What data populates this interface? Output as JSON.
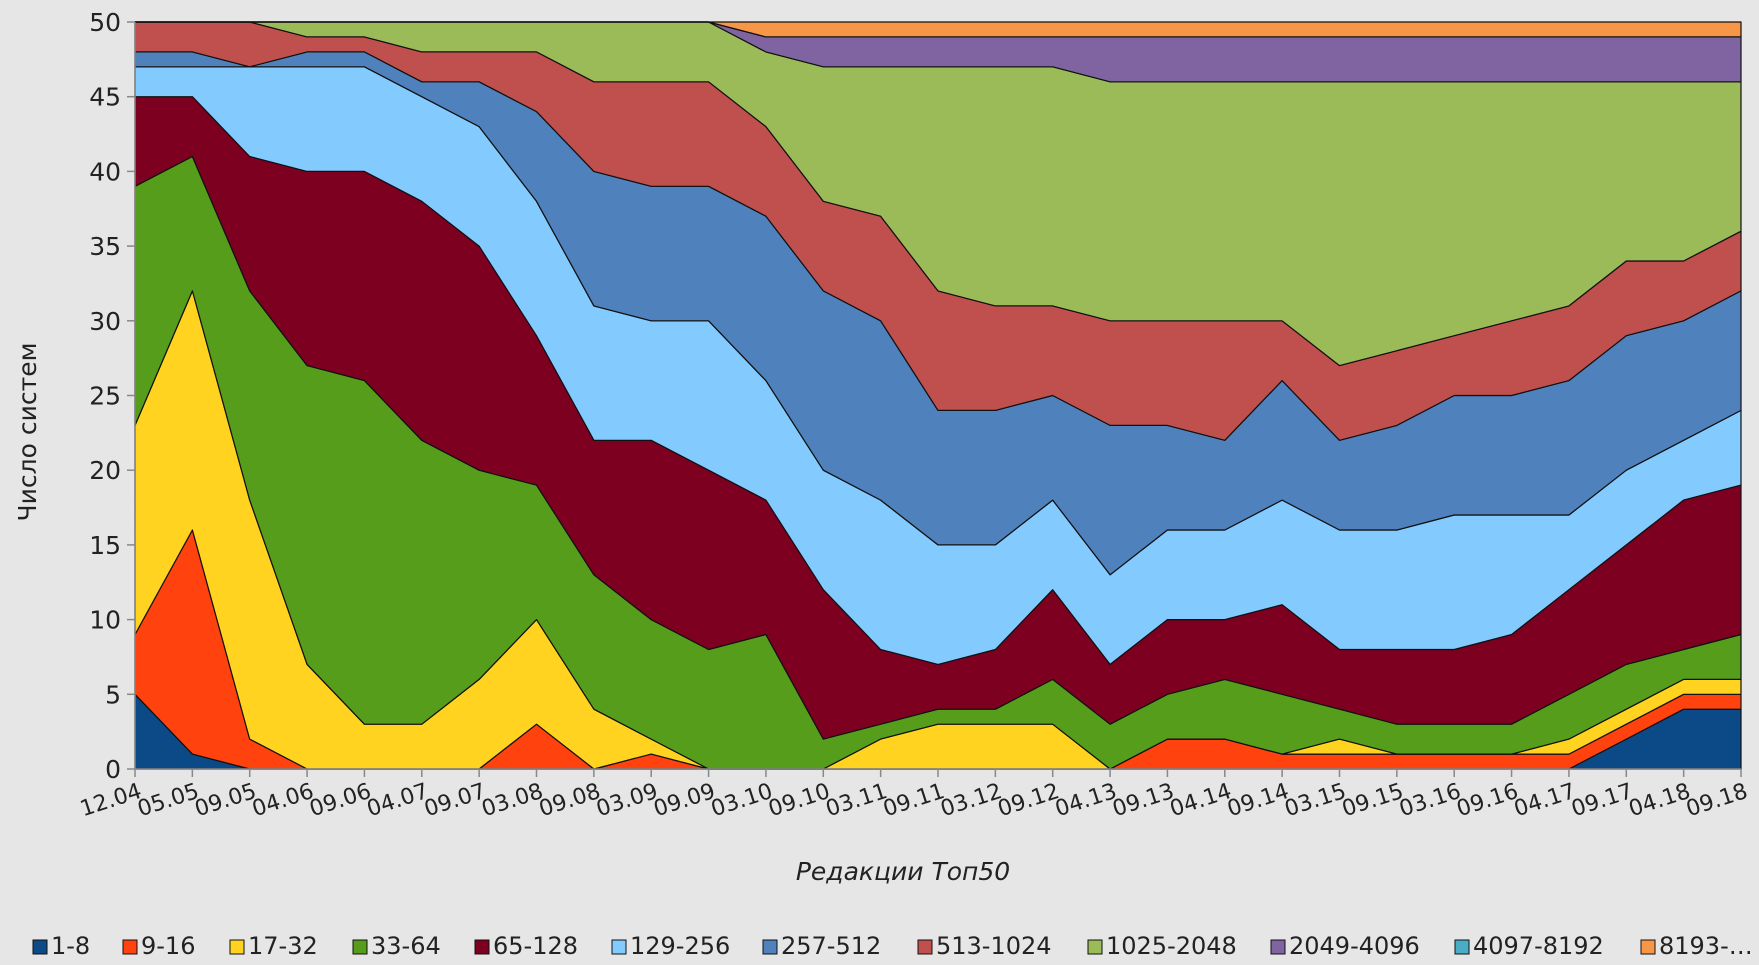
{
  "chart_data": {
    "type": "stacked_area",
    "x_label": "Редакции Топ50",
    "y_label": "Число систем",
    "categories": [
      "12.04",
      "05.05",
      "09.05",
      "04.06",
      "09.06",
      "04.07",
      "09.07",
      "03.08",
      "09.08",
      "03.09",
      "09.09",
      "03.10",
      "09.10",
      "03.11",
      "09.11",
      "03.12",
      "09.12",
      "04.13",
      "09.13",
      "04.14",
      "09.14",
      "03.15",
      "09.15",
      "03.16",
      "09.16",
      "04.17",
      "09.17",
      "04.18",
      "09.18"
    ],
    "ylim": [
      0,
      50
    ],
    "yticks": [
      0,
      5,
      10,
      15,
      20,
      25,
      30,
      35,
      40,
      45,
      50
    ],
    "legend": "bottom",
    "series": [
      {
        "name": "1-8",
        "color": "#0b4a86",
        "values": [
          5,
          1,
          0,
          0,
          0,
          0,
          0,
          0,
          0,
          0,
          0,
          0,
          0,
          0,
          0,
          0,
          0,
          0,
          0,
          0,
          0,
          0,
          0,
          0,
          0,
          0,
          2,
          4,
          4
        ]
      },
      {
        "name": "9-16",
        "color": "#ff420e",
        "values": [
          4,
          15,
          2,
          0,
          0,
          0,
          0,
          3,
          0,
          1,
          0,
          0,
          0,
          0,
          0,
          0,
          0,
          0,
          2,
          2,
          1,
          1,
          1,
          1,
          1,
          1,
          1,
          1,
          1
        ]
      },
      {
        "name": "17-32",
        "color": "#ffd320",
        "values": [
          14,
          16,
          16,
          7,
          3,
          3,
          6,
          7,
          4,
          1,
          0,
          0,
          0,
          2,
          3,
          3,
          3,
          0,
          0,
          0,
          0,
          1,
          0,
          0,
          0,
          1,
          1,
          1,
          1
        ]
      },
      {
        "name": "33-64",
        "color": "#579d1c",
        "values": [
          16,
          9,
          14,
          20,
          23,
          19,
          14,
          9,
          9,
          8,
          8,
          9,
          2,
          1,
          1,
          1,
          3,
          3,
          3,
          4,
          4,
          2,
          2,
          2,
          2,
          3,
          3,
          2,
          3
        ]
      },
      {
        "name": "65-128",
        "color": "#7e0021",
        "values": [
          6,
          4,
          9,
          13,
          14,
          16,
          15,
          10,
          9,
          12,
          12,
          9,
          10,
          5,
          3,
          4,
          6,
          4,
          5,
          4,
          6,
          4,
          5,
          5,
          6,
          7,
          8,
          10,
          10
        ]
      },
      {
        "name": "129-256",
        "color": "#83caff",
        "values": [
          2,
          2,
          6,
          7,
          7,
          7,
          8,
          9,
          9,
          8,
          10,
          8,
          8,
          10,
          8,
          7,
          6,
          6,
          6,
          6,
          7,
          8,
          8,
          9,
          8,
          5,
          5,
          4,
          5
        ]
      },
      {
        "name": "257-512",
        "color": "#4f81bd",
        "values": [
          1,
          1,
          0,
          1,
          1,
          1,
          3,
          6,
          9,
          9,
          9,
          11,
          12,
          12,
          9,
          9,
          7,
          10,
          7,
          6,
          8,
          6,
          7,
          8,
          8,
          9,
          9,
          8,
          8
        ]
      },
      {
        "name": "513-1024",
        "color": "#c0504d",
        "values": [
          2,
          2,
          3,
          1,
          1,
          2,
          2,
          4,
          6,
          7,
          7,
          6,
          6,
          7,
          8,
          7,
          6,
          7,
          7,
          8,
          4,
          5,
          5,
          4,
          5,
          5,
          5,
          4,
          4
        ]
      },
      {
        "name": "1025-2048",
        "color": "#9bbb59",
        "values": [
          0,
          0,
          0,
          1,
          1,
          2,
          2,
          2,
          4,
          4,
          4,
          5,
          9,
          10,
          15,
          16,
          16,
          16,
          16,
          16,
          16,
          19,
          18,
          17,
          16,
          15,
          12,
          12,
          10
        ]
      },
      {
        "name": "2049-4096",
        "color": "#8064a2",
        "values": [
          0,
          0,
          0,
          0,
          0,
          0,
          0,
          0,
          0,
          0,
          0,
          1,
          2,
          2,
          2,
          2,
          2,
          3,
          3,
          3,
          3,
          3,
          3,
          3,
          3,
          3,
          3,
          3,
          3
        ]
      },
      {
        "name": "4097-8192",
        "color": "#4bacc6",
        "values": [
          0,
          0,
          0,
          0,
          0,
          0,
          0,
          0,
          0,
          0,
          0,
          0,
          0,
          0,
          0,
          0,
          0,
          0,
          0,
          0,
          0,
          0,
          0,
          0,
          0,
          0,
          0,
          0,
          0
        ]
      },
      {
        "name": "8193-…",
        "color": "#f79646",
        "values": [
          0,
          0,
          0,
          0,
          0,
          0,
          0,
          0,
          0,
          0,
          0,
          1,
          1,
          1,
          1,
          1,
          1,
          1,
          1,
          1,
          1,
          1,
          1,
          1,
          1,
          1,
          1,
          1,
          1
        ]
      }
    ]
  }
}
